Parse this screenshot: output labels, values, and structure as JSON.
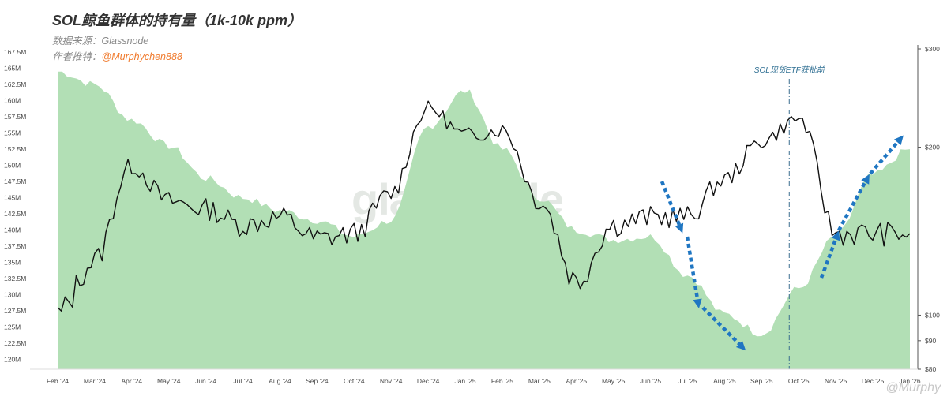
{
  "header": {
    "title": "SOL鲸鱼群体的持有量（1k-10k ppm）",
    "source_label": "数据来源：Glassnode",
    "author_prefix": "作者推特：",
    "author_handle": "@Murphychen888"
  },
  "watermark": "glassnode",
  "corner_watermark": "@Murphy",
  "annotation": {
    "etf_label": "SOL现货ETF获批前"
  },
  "colors": {
    "area_fill": "#b2dfb5",
    "price_line": "#111111",
    "arrow": "#1f76c2",
    "etf_line": "#3a6e8f",
    "author_handle": "#f07b2e"
  },
  "chart_data": {
    "type": "area",
    "title": "SOL鲸鱼群体的持有量（1k-10k ppm）",
    "x": [
      "Feb '24",
      "Mar '24",
      "Apr '24",
      "May '24",
      "Jun '24",
      "Jul '24",
      "Aug '24",
      "Sep '24",
      "Oct '24",
      "Nov '24",
      "Dec '24",
      "Jan '25",
      "Feb '25",
      "Mar '25",
      "Apr '25",
      "May '25",
      "Jun '25",
      "Jul '25",
      "Aug '25",
      "Sep '25",
      "Oct '25",
      "Nov '25",
      "Dec '25",
      "Jan '26"
    ],
    "y_left_ticks": [
      "120M",
      "122.5M",
      "125M",
      "127.5M",
      "130M",
      "132.5M",
      "135M",
      "137.5M",
      "140M",
      "142.5M",
      "145M",
      "147.5M",
      "150M",
      "152.5M",
      "155M",
      "157.5M",
      "160M",
      "162.5M",
      "165M",
      "167.5M"
    ],
    "y_right_ticks": [
      "$80",
      "$90",
      "$100",
      "$200",
      "$300"
    ],
    "y_left_range": [
      118.5,
      168
    ],
    "y_right_range": [
      80,
      300
    ],
    "y_right_scale": "log",
    "grid": false,
    "series": [
      {
        "name": "",
        "axis": "left",
        "kind": "area",
        "values": [
          164.5,
          162.5,
          157,
          153,
          148,
          145,
          143,
          141.5,
          139,
          141.5,
          156,
          161.5,
          152.5,
          145,
          140,
          138.5,
          139,
          133,
          127,
          124,
          131,
          139,
          148.5,
          152.5
        ]
      },
      {
        "name": "",
        "axis": "right",
        "kind": "line",
        "values": [
          100,
          125,
          185,
          160,
          155,
          145,
          150,
          137,
          140,
          165,
          235,
          210,
          215,
          160,
          115,
          145,
          150,
          150,
          175,
          205,
          225,
          140,
          140,
          140
        ]
      }
    ],
    "annotations": [
      {
        "type": "vline",
        "x": "Oct '25",
        "label": "SOL现货ETF获批前"
      }
    ]
  }
}
